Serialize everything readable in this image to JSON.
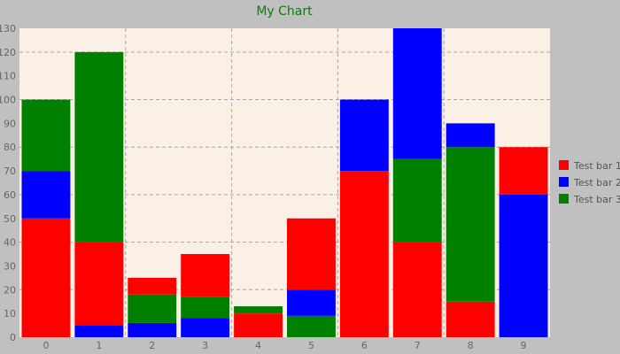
{
  "chart_data": {
    "type": "bar",
    "stacked": true,
    "title": "My Chart",
    "xlabel": "",
    "ylabel": "",
    "categories": [
      "0",
      "1",
      "2",
      "3",
      "4",
      "5",
      "6",
      "7",
      "8",
      "9"
    ],
    "ylim": [
      0,
      130
    ],
    "yticks": [
      0,
      10,
      20,
      30,
      40,
      50,
      60,
      70,
      80,
      90,
      100,
      110,
      120,
      130
    ],
    "grid": true,
    "legend_position": "right",
    "background_color": "#faf0e6",
    "series": [
      {
        "name": "Test bar 1",
        "color": "#ff0000",
        "values": [
          50,
          35,
          7,
          18,
          10,
          30,
          70,
          40,
          15,
          20
        ]
      },
      {
        "name": "Test bar 2",
        "color": "#0000ff",
        "values": [
          20,
          5,
          6,
          8,
          0,
          11,
          30,
          55,
          10,
          60
        ]
      },
      {
        "name": "Test bar 3",
        "color": "#008000",
        "values": [
          30,
          80,
          12,
          9,
          3,
          9,
          0,
          35,
          65,
          0
        ]
      }
    ],
    "stack_order": [
      [
        0,
        1,
        2
      ],
      [
        1,
        0,
        2
      ],
      [
        1,
        2,
        0
      ],
      [
        1,
        2,
        0
      ],
      [
        0,
        2,
        1
      ],
      [
        2,
        1,
        0
      ],
      [
        0,
        1,
        2
      ],
      [
        0,
        2,
        1
      ],
      [
        0,
        2,
        1
      ],
      [
        1,
        0,
        2
      ]
    ]
  }
}
